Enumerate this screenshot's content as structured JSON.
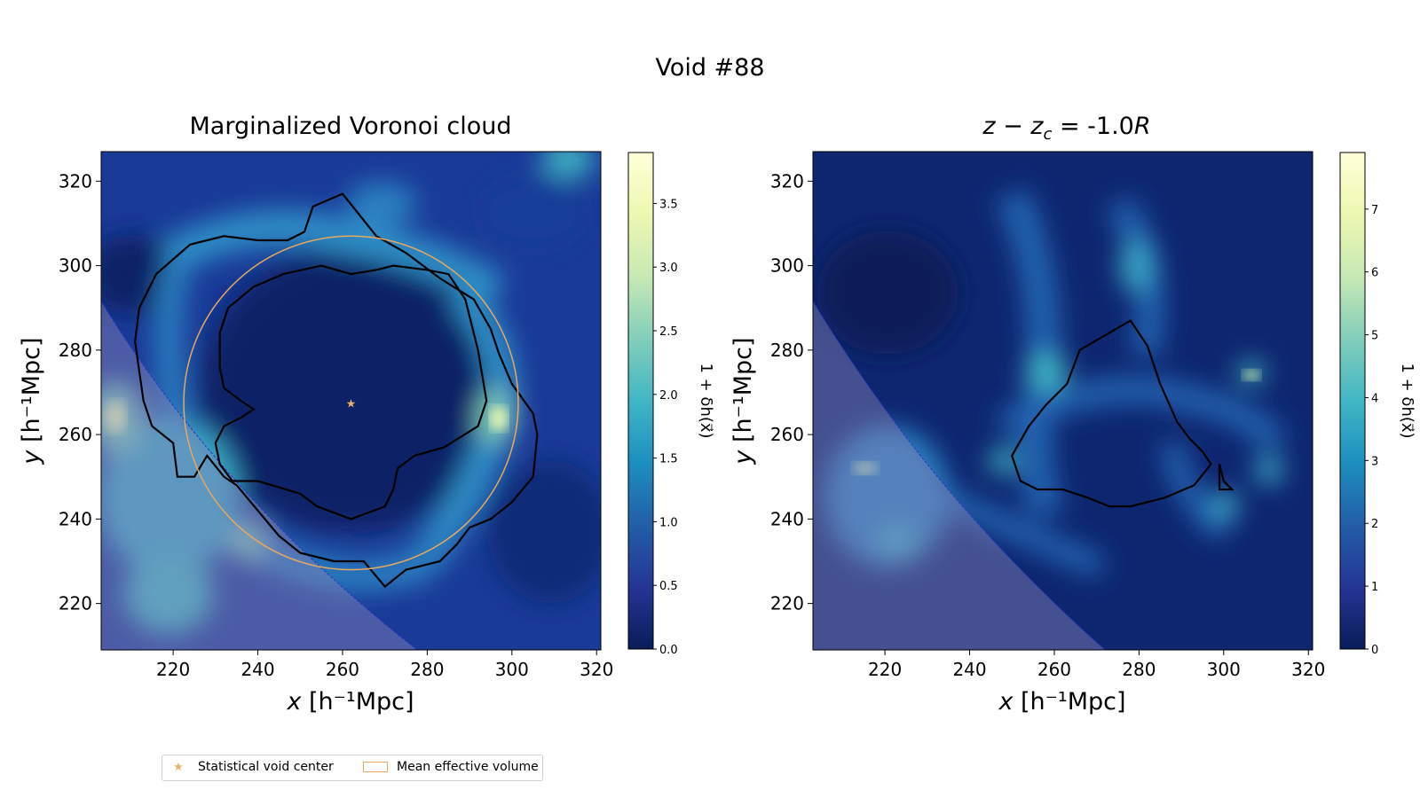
{
  "figure": {
    "title": "Void #88"
  },
  "legend": {
    "items": [
      {
        "label": "Statistical void center",
        "marker": "star",
        "color": "#e8b06a"
      },
      {
        "label": "Mean effective volume",
        "marker": "patch",
        "color": "#e8a860"
      }
    ]
  },
  "colormap": [
    "#081d58",
    "#253494",
    "#225ea8",
    "#1d91c0",
    "#41b6c4",
    "#7fcdbb",
    "#c7e9b4",
    "#edf8b1",
    "#ffffd9"
  ],
  "chart_data": [
    {
      "type": "heatmap",
      "title": "Marginalized Voronoi cloud",
      "xlabel_italic": "x",
      "ylabel_italic": "y",
      "unit": "[h⁻¹Mpc]",
      "xlim": [
        203,
        321
      ],
      "ylim": [
        209,
        327
      ],
      "xticks": [
        220,
        240,
        260,
        280,
        300,
        320
      ],
      "yticks": [
        220,
        240,
        260,
        280,
        300,
        320
      ],
      "colorbar": {
        "label": "1 + δh(x⃗)",
        "range": [
          0,
          3.9
        ],
        "ticks": [
          0.0,
          0.5,
          1.0,
          1.5,
          2.0,
          2.5,
          3.0,
          3.5
        ],
        "tick_labels": [
          "0.0",
          "0.5",
          "1.0",
          "1.5",
          "2.0",
          "2.5",
          "3.0",
          "3.5"
        ]
      },
      "void_center": [
        262,
        267.5
      ],
      "effective_radius": 39.5,
      "contours": [
        [
          [
            251,
            308
          ],
          [
            253,
            314
          ],
          [
            260,
            317
          ],
          [
            268,
            307
          ],
          [
            275,
            303
          ],
          [
            283,
            297
          ],
          [
            291,
            292
          ],
          [
            295,
            285
          ],
          [
            297,
            279
          ],
          [
            300,
            272
          ],
          [
            305,
            265
          ],
          [
            306,
            260
          ],
          [
            305,
            250
          ],
          [
            300,
            244
          ],
          [
            295,
            240
          ],
          [
            290,
            238
          ],
          [
            287,
            234
          ],
          [
            283,
            230
          ],
          [
            275,
            228
          ],
          [
            270,
            224
          ],
          [
            265,
            230
          ],
          [
            258,
            230
          ],
          [
            250,
            232
          ],
          [
            245,
            236
          ],
          [
            240,
            242
          ],
          [
            235,
            248
          ],
          [
            232,
            250
          ],
          [
            228,
            255
          ],
          [
            225,
            250
          ],
          [
            221,
            250
          ],
          [
            220,
            258
          ],
          [
            215,
            262
          ],
          [
            213,
            268
          ],
          [
            212,
            275
          ],
          [
            211,
            282
          ],
          [
            212,
            290
          ],
          [
            216,
            298
          ],
          [
            224,
            305
          ],
          [
            232,
            307
          ],
          [
            240,
            306
          ],
          [
            247,
            306
          ],
          [
            251,
            308
          ]
        ],
        [
          [
            246,
            298
          ],
          [
            255,
            300
          ],
          [
            262,
            298
          ],
          [
            268,
            299
          ],
          [
            272,
            300
          ],
          [
            280,
            299
          ],
          [
            285,
            298
          ],
          [
            289,
            292
          ],
          [
            292,
            280
          ],
          [
            294,
            268
          ],
          [
            292,
            262
          ],
          [
            284,
            257
          ],
          [
            277,
            255
          ],
          [
            273,
            252
          ],
          [
            272,
            247
          ],
          [
            270,
            243
          ],
          [
            262,
            240
          ],
          [
            254,
            243
          ],
          [
            250,
            246
          ],
          [
            240,
            249
          ],
          [
            234,
            249
          ],
          [
            231,
            253
          ],
          [
            230,
            258
          ],
          [
            232,
            262
          ],
          [
            236,
            264
          ],
          [
            239,
            266
          ],
          [
            236,
            268
          ],
          [
            232,
            271
          ],
          [
            231,
            276
          ],
          [
            231,
            284
          ],
          [
            233,
            290
          ],
          [
            239,
            295
          ],
          [
            246,
            298
          ]
        ]
      ],
      "hatched_region": true
    },
    {
      "type": "heatmap",
      "title_math": "z − z",
      "title_sub": "c",
      "title_rest": " = -1.0",
      "title_R": "R",
      "xlabel_italic": "x",
      "ylabel_italic": "y",
      "unit": "[h⁻¹Mpc]",
      "xlim": [
        203,
        321
      ],
      "ylim": [
        209,
        327
      ],
      "xticks": [
        220,
        240,
        260,
        280,
        300,
        320
      ],
      "yticks": [
        220,
        240,
        260,
        280,
        300,
        320
      ],
      "colorbar": {
        "label": "1 + δh(x⃗)",
        "range": [
          0,
          7.9
        ],
        "ticks": [
          0,
          1,
          2,
          3,
          4,
          5,
          6,
          7
        ],
        "tick_labels": [
          "0",
          "1",
          "2",
          "3",
          "4",
          "5",
          "6",
          "7"
        ]
      },
      "contours": [
        [
          [
            266,
            280
          ],
          [
            278,
            287
          ],
          [
            282,
            281
          ],
          [
            285,
            272
          ],
          [
            289,
            263
          ],
          [
            292,
            259
          ],
          [
            295,
            256
          ],
          [
            297,
            253
          ],
          [
            293,
            248
          ],
          [
            286,
            245
          ],
          [
            278,
            243
          ],
          [
            273,
            243
          ],
          [
            268,
            245
          ],
          [
            262,
            247
          ],
          [
            256,
            247
          ],
          [
            252,
            249
          ],
          [
            250,
            255
          ],
          [
            254,
            262
          ],
          [
            258,
            267
          ],
          [
            263,
            272
          ],
          [
            266,
            280
          ]
        ],
        [
          [
            299,
            253
          ],
          [
            300,
            249
          ],
          [
            302,
            247
          ],
          [
            299,
            247
          ],
          [
            299,
            253
          ]
        ]
      ],
      "hatched_region": true
    }
  ]
}
